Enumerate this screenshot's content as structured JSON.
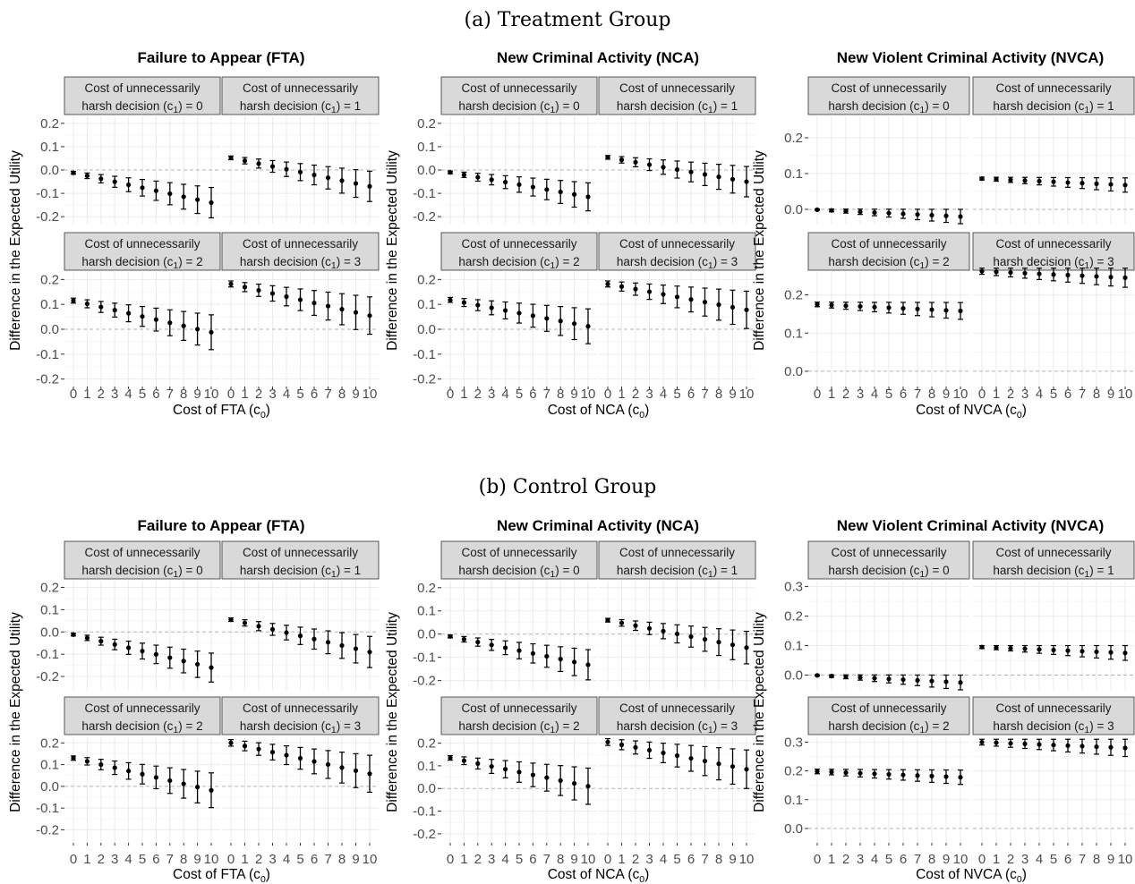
{
  "groups": [
    {
      "title": "(a) Treatment Group",
      "charts": [
        {
          "title": "Failure to Appear (FTA)",
          "xlabel": "Cost of FTA (c",
          "ylim": [
            -0.23,
            0.23
          ],
          "yticks": [
            -0.2,
            -0.1,
            0.0,
            0.1,
            0.2
          ],
          "rowYlim": [
            [
              -0.23,
              0.23
            ],
            [
              -0.23,
              0.23
            ]
          ],
          "start": [
            -0.012,
            0.052,
            0.115,
            0.182
          ],
          "end": [
            -0.14,
            -0.07,
            -0.012,
            0.055
          ],
          "err": [
            [
              0.006,
              0.065
            ],
            [
              0.008,
              0.065
            ],
            [
              0.01,
              0.07
            ],
            [
              0.012,
              0.075
            ]
          ]
        },
        {
          "title": "New Criminal Activity (NCA)",
          "xlabel": "Cost of NCA (c",
          "ylim": [
            -0.23,
            0.23
          ],
          "yticks": [
            -0.2,
            -0.1,
            0.0,
            0.1,
            0.2
          ],
          "rowYlim": [
            [
              -0.23,
              0.23
            ],
            [
              -0.23,
              0.23
            ]
          ],
          "start": [
            -0.01,
            0.054,
            0.118,
            0.182
          ],
          "end": [
            -0.115,
            -0.05,
            0.012,
            0.078
          ],
          "err": [
            [
              0.006,
              0.06
            ],
            [
              0.008,
              0.065
            ],
            [
              0.01,
              0.07
            ],
            [
              0.012,
              0.075
            ]
          ]
        },
        {
          "title": "New Violent Criminal Activity (NVCA)",
          "xlabel": "Cost of NVCA (c",
          "ylim": [
            -0.04,
            0.26
          ],
          "yticks": [
            0.0,
            0.1,
            0.2
          ],
          "rowYlim": [
            [
              -0.04,
              0.26
            ],
            [
              -0.04,
              0.26
            ]
          ],
          "start": [
            -0.001,
            0.086,
            0.175,
            0.262
          ],
          "end": [
            -0.02,
            0.068,
            0.158,
            0.245
          ],
          "err": [
            [
              0.002,
              0.02
            ],
            [
              0.004,
              0.02
            ],
            [
              0.006,
              0.022
            ],
            [
              0.008,
              0.025
            ]
          ]
        }
      ]
    },
    {
      "title": "(b) Control Group",
      "charts": [
        {
          "title": "Failure to Appear (FTA)",
          "xlabel": "Cost of FTA (c",
          "ylim": [
            -0.26,
            0.23
          ],
          "yticks": [
            -0.2,
            -0.1,
            0.0,
            0.1,
            0.2
          ],
          "rowYlim": [
            [
              -0.26,
              0.23
            ],
            [
              -0.26,
              0.23
            ]
          ],
          "start": [
            -0.012,
            0.055,
            0.13,
            0.2
          ],
          "end": [
            -0.16,
            -0.09,
            -0.018,
            0.058
          ],
          "err": [
            [
              0.006,
              0.065
            ],
            [
              0.008,
              0.07
            ],
            [
              0.01,
              0.08
            ],
            [
              0.015,
              0.085
            ]
          ]
        },
        {
          "title": "New Criminal Activity (NCA)",
          "xlabel": "Cost of NCA (c",
          "ylim": [
            -0.24,
            0.23
          ],
          "yticks": [
            -0.2,
            -0.1,
            0.0,
            0.1,
            0.2
          ],
          "rowYlim": [
            [
              -0.24,
              0.23
            ],
            [
              -0.24,
              0.23
            ]
          ],
          "start": [
            -0.01,
            0.06,
            0.135,
            0.205
          ],
          "end": [
            -0.132,
            -0.058,
            0.01,
            0.085
          ],
          "err": [
            [
              0.006,
              0.065
            ],
            [
              0.008,
              0.07
            ],
            [
              0.01,
              0.08
            ],
            [
              0.015,
              0.085
            ]
          ]
        },
        {
          "title": "New Violent Criminal Activity (NVCA)",
          "xlabel": "Cost of NVCA (c",
          "ylim": [
            -0.05,
            0.32
          ],
          "yticks": [
            0.0,
            0.1,
            0.2,
            0.3
          ],
          "rowYlim": [
            [
              -0.05,
              0.32
            ],
            [
              -0.05,
              0.32
            ]
          ],
          "start": [
            -0.001,
            0.095,
            0.198,
            0.3
          ],
          "end": [
            -0.025,
            0.075,
            0.178,
            0.28
          ],
          "err": [
            [
              0.002,
              0.025
            ],
            [
              0.005,
              0.025
            ],
            [
              0.008,
              0.025
            ],
            [
              0.01,
              0.03
            ]
          ]
        }
      ]
    }
  ],
  "strip_line1": "Cost of unnecessarily",
  "strip_line2_prefix": "harsh decision (c",
  "strip_sub": "1",
  "strip_values": [
    "0",
    "1",
    "2",
    "3"
  ],
  "xlabel_sub": "0",
  "ylabel": "Difference in the Expected Utility",
  "x_categories": [
    "0",
    "1",
    "2",
    "3",
    "4",
    "5",
    "6",
    "7",
    "8",
    "9",
    "10"
  ],
  "colors": {
    "panel_bg": "#ffffff",
    "grid_major": "#ebebeb",
    "grid_minor": "#f5f5f5",
    "strip_bg": "#d9d9d9",
    "strip_border": "#333333",
    "zero_line": "#b3b3b3",
    "point": "#000000"
  },
  "chart_data": [
    {
      "type": "scatter",
      "title": "Failure to Appear (FTA)",
      "group": "(a) Treatment Group",
      "facets": [
        "c1 = 0",
        "c1 = 1",
        "c1 = 2",
        "c1 = 3"
      ],
      "x": [
        0,
        1,
        2,
        3,
        4,
        5,
        6,
        7,
        8,
        9,
        10
      ],
      "series": [
        {
          "name": "c1 = 0",
          "values": [
            -0.012,
            -0.025,
            -0.037,
            -0.05,
            -0.063,
            -0.076,
            -0.089,
            -0.101,
            -0.114,
            -0.127,
            -0.14
          ]
        },
        {
          "name": "c1 = 1",
          "values": [
            0.052,
            0.04,
            0.028,
            0.015,
            0.003,
            -0.009,
            -0.021,
            -0.033,
            -0.046,
            -0.058,
            -0.07
          ]
        },
        {
          "name": "c1 = 2",
          "values": [
            0.115,
            0.102,
            0.09,
            0.077,
            0.064,
            0.052,
            0.039,
            0.026,
            0.013,
            0.001,
            -0.012
          ]
        },
        {
          "name": "c1 = 3",
          "values": [
            0.182,
            0.169,
            0.157,
            0.144,
            0.131,
            0.119,
            0.106,
            0.093,
            0.08,
            0.068,
            0.055
          ]
        }
      ],
      "ylim": [
        -0.23,
        0.23
      ]
    },
    {
      "type": "scatter",
      "title": "New Criminal Activity (NCA)",
      "group": "(a) Treatment Group",
      "facets": [
        "c1 = 0",
        "c1 = 1",
        "c1 = 2",
        "c1 = 3"
      ],
      "x": [
        0,
        1,
        2,
        3,
        4,
        5,
        6,
        7,
        8,
        9,
        10
      ],
      "series": [
        {
          "name": "c1 = 0",
          "values": [
            -0.01,
            -0.021,
            -0.031,
            -0.042,
            -0.052,
            -0.063,
            -0.073,
            -0.084,
            -0.094,
            -0.105,
            -0.115
          ]
        },
        {
          "name": "c1 = 1",
          "values": [
            0.054,
            0.044,
            0.033,
            0.023,
            0.012,
            0.002,
            -0.008,
            -0.019,
            -0.029,
            -0.04,
            -0.05
          ]
        },
        {
          "name": "c1 = 2",
          "values": [
            0.118,
            0.107,
            0.097,
            0.086,
            0.075,
            0.065,
            0.054,
            0.044,
            0.033,
            0.022,
            0.012
          ]
        },
        {
          "name": "c1 = 3",
          "values": [
            0.182,
            0.172,
            0.161,
            0.151,
            0.14,
            0.13,
            0.12,
            0.109,
            0.099,
            0.088,
            0.078
          ]
        }
      ],
      "ylim": [
        -0.23,
        0.23
      ]
    },
    {
      "type": "scatter",
      "title": "New Violent Criminal Activity (NVCA)",
      "group": "(a) Treatment Group",
      "facets": [
        "c1 = 0",
        "c1 = 1",
        "c1 = 2",
        "c1 = 3"
      ],
      "x": [
        0,
        1,
        2,
        3,
        4,
        5,
        6,
        7,
        8,
        9,
        10
      ],
      "series": [
        {
          "name": "c1 = 0",
          "values": [
            -0.001,
            -0.003,
            -0.005,
            -0.007,
            -0.009,
            -0.011,
            -0.012,
            -0.014,
            -0.016,
            -0.018,
            -0.02
          ]
        },
        {
          "name": "c1 = 1",
          "values": [
            0.086,
            0.084,
            0.082,
            0.081,
            0.079,
            0.077,
            0.075,
            0.073,
            0.072,
            0.07,
            0.068
          ]
        },
        {
          "name": "c1 = 2",
          "values": [
            0.175,
            0.173,
            0.172,
            0.17,
            0.168,
            0.167,
            0.165,
            0.163,
            0.161,
            0.16,
            0.158
          ]
        },
        {
          "name": "c1 = 3",
          "values": [
            0.262,
            0.26,
            0.259,
            0.257,
            0.255,
            0.254,
            0.252,
            0.25,
            0.248,
            0.247,
            0.245
          ]
        }
      ],
      "ylim": [
        -0.04,
        0.26
      ]
    },
    {
      "type": "scatter",
      "title": "Failure to Appear (FTA)",
      "group": "(b) Control Group",
      "facets": [
        "c1 = 0",
        "c1 = 1",
        "c1 = 2",
        "c1 = 3"
      ],
      "x": [
        0,
        1,
        2,
        3,
        4,
        5,
        6,
        7,
        8,
        9,
        10
      ],
      "series": [
        {
          "name": "c1 = 0",
          "values": [
            -0.012,
            -0.027,
            -0.042,
            -0.056,
            -0.071,
            -0.086,
            -0.101,
            -0.116,
            -0.13,
            -0.145,
            -0.16
          ]
        },
        {
          "name": "c1 = 1",
          "values": [
            0.055,
            0.041,
            0.026,
            0.012,
            -0.003,
            -0.018,
            -0.032,
            -0.047,
            -0.061,
            -0.076,
            -0.09
          ]
        },
        {
          "name": "c1 = 2",
          "values": [
            0.13,
            0.115,
            0.1,
            0.085,
            0.07,
            0.056,
            0.041,
            0.026,
            0.011,
            -0.004,
            -0.018
          ]
        },
        {
          "name": "c1 = 3",
          "values": [
            0.2,
            0.186,
            0.172,
            0.157,
            0.143,
            0.129,
            0.115,
            0.101,
            0.086,
            0.072,
            0.058
          ]
        }
      ],
      "ylim": [
        -0.26,
        0.23
      ]
    },
    {
      "type": "scatter",
      "title": "New Criminal Activity (NCA)",
      "group": "(b) Control Group",
      "facets": [
        "c1 = 0",
        "c1 = 1",
        "c1 = 2",
        "c1 = 3"
      ],
      "x": [
        0,
        1,
        2,
        3,
        4,
        5,
        6,
        7,
        8,
        9,
        10
      ],
      "series": [
        {
          "name": "c1 = 0",
          "values": [
            -0.01,
            -0.022,
            -0.034,
            -0.047,
            -0.059,
            -0.071,
            -0.083,
            -0.095,
            -0.108,
            -0.12,
            -0.132
          ]
        },
        {
          "name": "c1 = 1",
          "values": [
            0.06,
            0.048,
            0.036,
            0.025,
            0.013,
            0.001,
            -0.011,
            -0.023,
            -0.034,
            -0.046,
            -0.058
          ]
        },
        {
          "name": "c1 = 2",
          "values": [
            0.135,
            0.123,
            0.11,
            0.098,
            0.085,
            0.073,
            0.06,
            0.048,
            0.035,
            0.023,
            0.01
          ]
        },
        {
          "name": "c1 = 3",
          "values": [
            0.205,
            0.193,
            0.181,
            0.169,
            0.157,
            0.145,
            0.133,
            0.121,
            0.109,
            0.097,
            0.085
          ]
        }
      ],
      "ylim": [
        -0.24,
        0.23
      ]
    },
    {
      "type": "scatter",
      "title": "New Violent Criminal Activity (NVCA)",
      "group": "(b) Control Group",
      "facets": [
        "c1 = 0",
        "c1 = 1",
        "c1 = 2",
        "c1 = 3"
      ],
      "x": [
        0,
        1,
        2,
        3,
        4,
        5,
        6,
        7,
        8,
        9,
        10
      ],
      "series": [
        {
          "name": "c1 = 0",
          "values": [
            -0.001,
            -0.003,
            -0.006,
            -0.008,
            -0.011,
            -0.013,
            -0.015,
            -0.018,
            -0.02,
            -0.023,
            -0.025
          ]
        },
        {
          "name": "c1 = 1",
          "values": [
            0.095,
            0.093,
            0.091,
            0.089,
            0.087,
            0.085,
            0.083,
            0.081,
            0.079,
            0.077,
            0.075
          ]
        },
        {
          "name": "c1 = 2",
          "values": [
            0.198,
            0.196,
            0.194,
            0.192,
            0.19,
            0.188,
            0.186,
            0.184,
            0.182,
            0.18,
            0.178
          ]
        },
        {
          "name": "c1 = 3",
          "values": [
            0.3,
            0.298,
            0.296,
            0.294,
            0.292,
            0.29,
            0.288,
            0.286,
            0.284,
            0.282,
            0.28
          ]
        }
      ],
      "ylim": [
        -0.05,
        0.32
      ]
    }
  ]
}
